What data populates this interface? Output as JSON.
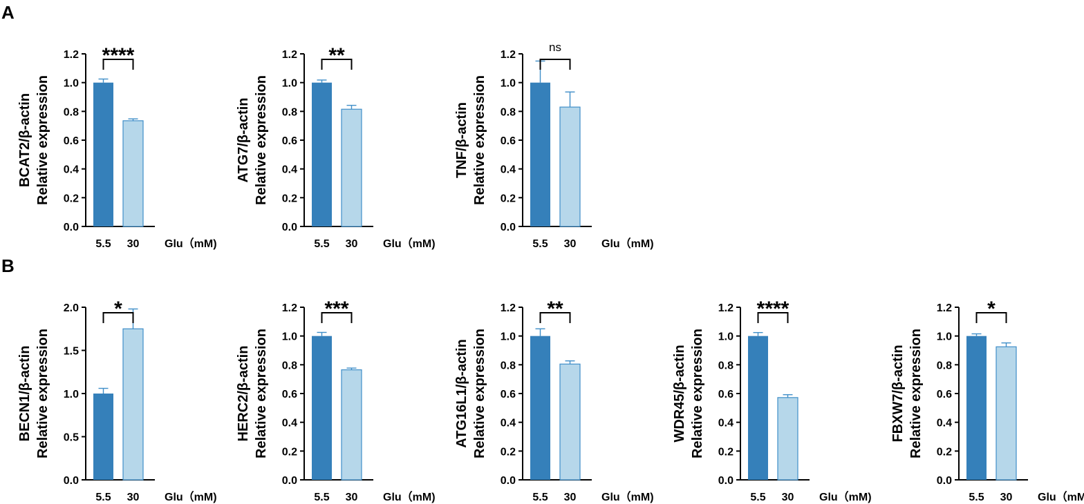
{
  "panels": [
    {
      "label": "A"
    },
    {
      "label": "B"
    }
  ],
  "chart_data": [
    {
      "panel": "A",
      "type": "bar",
      "categories": [
        "5.5",
        "30"
      ],
      "values": [
        1.0,
        0.735
      ],
      "errors": [
        0.025,
        0.013
      ],
      "colors": [
        "#3580ba",
        "#b6d7ea"
      ],
      "ylabel": [
        "BCAT2/β-actin",
        "Relative expression"
      ],
      "ylim": [
        0,
        1.2
      ],
      "ticks": [
        "0.0",
        "0.2",
        "0.4",
        "0.6",
        "0.8",
        "1.0",
        "1.2"
      ],
      "xunit": "Glu（mM)",
      "significance": "****"
    },
    {
      "panel": "A",
      "type": "bar",
      "categories": [
        "5.5",
        "30"
      ],
      "values": [
        1.0,
        0.815
      ],
      "errors": [
        0.018,
        0.027
      ],
      "colors": [
        "#3580ba",
        "#b6d7ea"
      ],
      "ylabel": [
        "ATG7/β-actin",
        "Relative expression"
      ],
      "ylim": [
        0,
        1.2
      ],
      "ticks": [
        "0.0",
        "0.2",
        "0.4",
        "0.6",
        "0.8",
        "1.0",
        "1.2"
      ],
      "xunit": "Glu（mM)",
      "significance": "**"
    },
    {
      "panel": "A",
      "type": "bar",
      "categories": [
        "5.5",
        "30"
      ],
      "values": [
        1.0,
        0.83
      ],
      "errors": [
        0.15,
        0.105
      ],
      "colors": [
        "#3580ba",
        "#b6d7ea"
      ],
      "ylabel": [
        "TNF/β-actin",
        "Relative expression"
      ],
      "ylim": [
        0,
        1.2
      ],
      "ticks": [
        "0.0",
        "0.2",
        "0.4",
        "0.6",
        "0.8",
        "1.0",
        "1.2"
      ],
      "xunit": "Glu（mM)",
      "significance": "ns"
    },
    {
      "panel": "B",
      "type": "bar",
      "categories": [
        "5.5",
        "30"
      ],
      "values": [
        1.0,
        1.75
      ],
      "errors": [
        0.06,
        0.23
      ],
      "colors": [
        "#3580ba",
        "#b6d7ea"
      ],
      "ylabel": [
        "BECN1/β-actin",
        "Relative expression"
      ],
      "ylim": [
        0,
        2.0
      ],
      "ticks": [
        "0.0",
        "0.5",
        "1.0",
        "1.5",
        "2.0"
      ],
      "xunit": "Glu（mM)",
      "significance": "*"
    },
    {
      "panel": "B",
      "type": "bar",
      "categories": [
        "5.5",
        "30"
      ],
      "values": [
        1.0,
        0.765
      ],
      "errors": [
        0.025,
        0.012
      ],
      "colors": [
        "#3580ba",
        "#b6d7ea"
      ],
      "ylabel": [
        "HERC2/β-actin",
        "Relative expression"
      ],
      "ylim": [
        0,
        1.2
      ],
      "ticks": [
        "0.0",
        "0.2",
        "0.4",
        "0.6",
        "0.8",
        "1.0",
        "1.2"
      ],
      "xunit": "Glu（mM)",
      "significance": "***"
    },
    {
      "panel": "B",
      "type": "bar",
      "categories": [
        "5.5",
        "30"
      ],
      "values": [
        1.0,
        0.805
      ],
      "errors": [
        0.05,
        0.022
      ],
      "colors": [
        "#3580ba",
        "#b6d7ea"
      ],
      "ylabel": [
        "ATG16L1/β-actin",
        "Relative expression"
      ],
      "ylim": [
        0,
        1.2
      ],
      "ticks": [
        "0.0",
        "0.2",
        "0.4",
        "0.6",
        "0.8",
        "1.0",
        "1.2"
      ],
      "xunit": "Glu（mM)",
      "significance": "**"
    },
    {
      "panel": "B",
      "type": "bar",
      "categories": [
        "5.5",
        "30"
      ],
      "values": [
        1.0,
        0.572
      ],
      "errors": [
        0.024,
        0.02
      ],
      "colors": [
        "#3580ba",
        "#b6d7ea"
      ],
      "ylabel": [
        "WDR45/β-actin",
        "Relative expression"
      ],
      "ylim": [
        0,
        1.2
      ],
      "ticks": [
        "0.0",
        "0.2",
        "0.4",
        "0.6",
        "0.8",
        "1.0",
        "1.2"
      ],
      "xunit": "Glu（mM)",
      "significance": "****"
    },
    {
      "panel": "B",
      "type": "bar",
      "categories": [
        "5.5",
        "30"
      ],
      "values": [
        1.0,
        0.925
      ],
      "errors": [
        0.015,
        0.027
      ],
      "colors": [
        "#3580ba",
        "#b6d7ea"
      ],
      "ylabel": [
        "FBXW7/β-actin",
        "Relative expression"
      ],
      "ylim": [
        0,
        1.2
      ],
      "ticks": [
        "0.0",
        "0.2",
        "0.4",
        "0.6",
        "0.8",
        "1.0",
        "1.2"
      ],
      "xunit": "Glu（mM)",
      "significance": "*"
    }
  ]
}
